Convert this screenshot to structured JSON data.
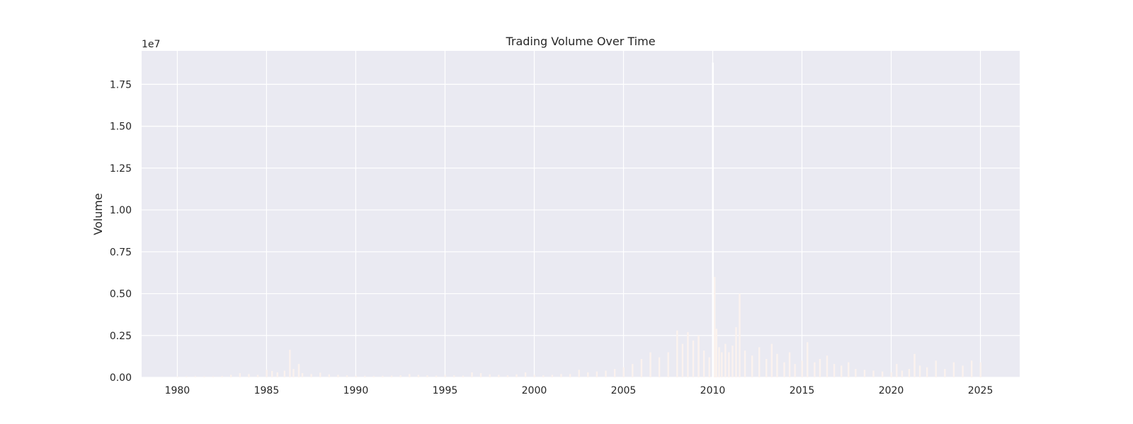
{
  "chart_data": {
    "type": "bar",
    "title": "Trading Volume Over Time",
    "xlabel": "",
    "ylabel": "Volume",
    "y_offset_text": "1e7",
    "y_multiplier": 10000000,
    "xlim": [
      1978.0,
      2027.2
    ],
    "ylim": [
      0,
      19500000
    ],
    "x_ticks": [
      1980,
      1985,
      1990,
      1995,
      2000,
      2005,
      2010,
      2015,
      2020,
      2025
    ],
    "x_tick_labels": [
      "1980",
      "1985",
      "1990",
      "1995",
      "2000",
      "2005",
      "2010",
      "2015",
      "2020",
      "2025"
    ],
    "y_ticks": [
      0,
      2500000,
      5000000,
      7500000,
      10000000,
      12500000,
      15000000,
      17500000
    ],
    "y_tick_labels": [
      "0.00",
      "0.25",
      "0.50",
      "0.75",
      "1.00",
      "1.25",
      "1.50",
      "1.75"
    ],
    "grid": true,
    "bar_color": "#fbf2ee",
    "background_color": "#eaeaf2",
    "grid_color": "#ffffff",
    "series": [
      {
        "x": [
          1980.0,
          1980.5,
          1981.0,
          1981.5,
          1982.0,
          1982.5,
          1983.0,
          1983.5,
          1984.0,
          1984.5,
          1985.0,
          1985.3,
          1985.6,
          1986.0,
          1986.3,
          1986.5,
          1986.8,
          1987.0,
          1987.5,
          1988.0,
          1988.5,
          1989.0,
          1989.5,
          1990.0,
          1990.5,
          1991.0,
          1991.5,
          1992.0,
          1992.5,
          1993.0,
          1993.5,
          1994.0,
          1994.5,
          1995.0,
          1995.5,
          1996.0,
          1996.5,
          1997.0,
          1997.5,
          1998.0,
          1998.5,
          1999.0,
          1999.5,
          2000.0,
          2000.5,
          2001.0,
          2001.5,
          2002.0,
          2002.5,
          2003.0,
          2003.5,
          2004.0,
          2004.5,
          2005.0,
          2005.5,
          2006.0,
          2006.5,
          2007.0,
          2007.5,
          2008.0,
          2008.3,
          2008.6,
          2008.9,
          2009.2,
          2009.5,
          2009.8,
          2010.0,
          2010.1,
          2010.2,
          2010.35,
          2010.5,
          2010.7,
          2010.9,
          2011.1,
          2011.3,
          2011.5,
          2011.8,
          2012.2,
          2012.6,
          2013.0,
          2013.3,
          2013.6,
          2014.0,
          2014.3,
          2014.6,
          2015.0,
          2015.3,
          2015.7,
          2016.0,
          2016.4,
          2016.8,
          2017.2,
          2017.6,
          2018.0,
          2018.5,
          2019.0,
          2019.5,
          2020.0,
          2020.3,
          2020.6,
          2021.0,
          2021.3,
          2021.6,
          2022.0,
          2022.5,
          2023.0,
          2023.5,
          2024.0,
          2024.5,
          2025.0
        ],
        "values": [
          50000,
          60000,
          70000,
          60000,
          60000,
          80000,
          150000,
          250000,
          200000,
          150000,
          450000,
          380000,
          300000,
          400000,
          1650000,
          500000,
          800000,
          250000,
          200000,
          280000,
          180000,
          150000,
          120000,
          100000,
          90000,
          80000,
          90000,
          100000,
          120000,
          200000,
          150000,
          120000,
          100000,
          150000,
          120000,
          100000,
          300000,
          250000,
          180000,
          150000,
          120000,
          180000,
          300000,
          150000,
          120000,
          150000,
          200000,
          200000,
          450000,
          300000,
          350000,
          400000,
          500000,
          600000,
          800000,
          1100000,
          1500000,
          1200000,
          1500000,
          2800000,
          2000000,
          2700000,
          2200000,
          2500000,
          1600000,
          1200000,
          18800000,
          6000000,
          2900000,
          1800000,
          1500000,
          2000000,
          1500000,
          1900000,
          3000000,
          5000000,
          1600000,
          1300000,
          1800000,
          1100000,
          2000000,
          1400000,
          900000,
          1500000,
          800000,
          1000000,
          2100000,
          900000,
          1100000,
          1300000,
          800000,
          700000,
          900000,
          500000,
          450000,
          400000,
          350000,
          300000,
          800000,
          400000,
          500000,
          1400000,
          700000,
          600000,
          1000000,
          500000,
          900000,
          700000,
          1000000,
          900000
        ]
      }
    ]
  }
}
